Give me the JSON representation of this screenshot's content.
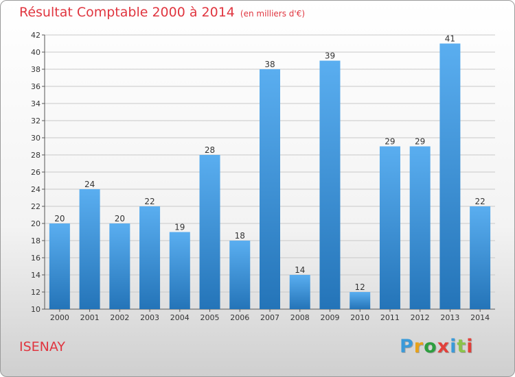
{
  "header": {
    "title": "Résultat Comptable 2000 à 2014",
    "unit": "(en milliers d'€)"
  },
  "footer": {
    "commune": "ISENAY",
    "logo_text": "Proxiti",
    "logo_colors": [
      "#3a9ad9",
      "#e8a21a",
      "#2d9e3f",
      "#e2403a",
      "#3a9ad9",
      "#8bc34a",
      "#e2403a"
    ]
  },
  "colors": {
    "bar_top": "#5aaef0",
    "bar_bottom": "#2474b8",
    "grid": "#c8c8c8",
    "title": "#e0353f"
  },
  "chart_data": {
    "type": "bar",
    "title": "Résultat Comptable 2000 à 2014",
    "categories": [
      "2000",
      "2001",
      "2002",
      "2003",
      "2004",
      "2005",
      "2006",
      "2007",
      "2008",
      "2009",
      "2010",
      "2011",
      "2012",
      "2013",
      "2014"
    ],
    "values": [
      20,
      24,
      20,
      22,
      19,
      28,
      18,
      38,
      14,
      39,
      12,
      29,
      29,
      41,
      22
    ],
    "ylim": [
      10,
      42
    ],
    "yticks": [
      10,
      12,
      14,
      16,
      18,
      20,
      22,
      24,
      26,
      28,
      30,
      32,
      34,
      36,
      38,
      40,
      42
    ],
    "grid": true,
    "xlabel": "",
    "ylabel": ""
  }
}
